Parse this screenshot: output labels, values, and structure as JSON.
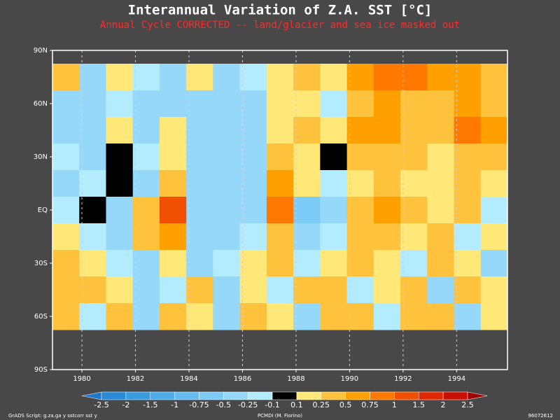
{
  "chart_data": {
    "type": "heatmap",
    "title": "Interannual Variation of Z.A. SST [°C]",
    "subtitle": "Annual Cycle CORRECTED -- land/glacier and sea ice masked out",
    "x": [
      1979.4,
      1980.4,
      1981.4,
      1982.4,
      1983.4,
      1984.4,
      1985.4,
      1986.4,
      1987.4,
      1988.4,
      1989.4,
      1990.4,
      1991.4,
      1992.4,
      1993.4,
      1994.4,
      1995.4
    ],
    "y": [
      75,
      60,
      45,
      30,
      15,
      0,
      -15,
      -30,
      -45,
      -60
    ],
    "z": [
      [
        0.3,
        -0.3,
        0.2,
        -0.2,
        -0.3,
        0.2,
        -0.3,
        -0.2,
        0.2,
        0.3,
        0.2,
        0.6,
        0.8,
        0.9,
        0.7,
        0.6,
        0.4
      ],
      [
        -0.3,
        -0.5,
        -0.2,
        -0.3,
        -0.4,
        -0.5,
        -0.3,
        -0.4,
        0.2,
        0.15,
        -0.2,
        0.4,
        0.5,
        0.3,
        0.4,
        0.6,
        0.3
      ],
      [
        -0.4,
        -0.3,
        0.2,
        -0.4,
        0.15,
        -0.3,
        -0.4,
        -0.3,
        0.2,
        0.3,
        0.15,
        0.5,
        0.7,
        0.4,
        0.3,
        0.8,
        0.5
      ],
      [
        -0.2,
        -0.3,
        -0.05,
        -0.2,
        0.2,
        -0.3,
        -0.4,
        -0.3,
        0.3,
        0.2,
        -0.05,
        0.3,
        0.4,
        0.3,
        0.2,
        0.4,
        0.3
      ],
      [
        -0.3,
        -0.2,
        0.0,
        -0.3,
        0.3,
        -0.4,
        -0.5,
        -0.4,
        0.5,
        0.2,
        -0.2,
        0.2,
        0.3,
        0.2,
        0.15,
        0.3,
        0.2
      ],
      [
        -0.2,
        0.0,
        -0.3,
        0.4,
        1.2,
        -0.3,
        -0.5,
        -0.4,
        0.8,
        -0.6,
        -0.4,
        0.3,
        0.5,
        0.4,
        0.2,
        0.3,
        -0.2
      ],
      [
        0.2,
        -0.2,
        -0.3,
        0.3,
        0.6,
        -0.3,
        -0.4,
        -0.2,
        0.4,
        -0.3,
        -0.2,
        0.3,
        0.4,
        0.2,
        0.3,
        -0.2,
        0.15
      ],
      [
        0.3,
        0.15,
        -0.2,
        -0.3,
        0.2,
        -0.3,
        -0.2,
        0.15,
        0.3,
        -0.2,
        0.2,
        0.3,
        0.2,
        -0.2,
        0.3,
        0.2,
        -0.3
      ],
      [
        0.4,
        0.3,
        0.2,
        -0.3,
        -0.2,
        0.3,
        -0.3,
        0.2,
        -0.2,
        0.3,
        0.3,
        -0.2,
        0.2,
        0.3,
        -0.3,
        0.4,
        0.2
      ],
      [
        0.3,
        -0.2,
        0.4,
        -0.3,
        0.3,
        0.2,
        -0.4,
        0.3,
        0.2,
        -0.3,
        0.3,
        0.4,
        -0.2,
        0.3,
        0.3,
        -0.3,
        0.2
      ]
    ],
    "xlim": [
      1978.9,
      1995.9
    ],
    "ylim": [
      -90,
      90
    ],
    "xticks": [
      1980,
      1982,
      1984,
      1986,
      1988,
      1990,
      1992,
      1994
    ],
    "yticks": [
      {
        "value": 90,
        "label": "90N"
      },
      {
        "value": 60,
        "label": "60N"
      },
      {
        "value": 30,
        "label": "30N"
      },
      {
        "value": 0,
        "label": "EQ"
      },
      {
        "value": -30,
        "label": "30S"
      },
      {
        "value": -60,
        "label": "60S"
      },
      {
        "value": -90,
        "label": "90S"
      }
    ],
    "xgrid": true,
    "colorbar": {
      "levels": [
        -2.5,
        -2,
        -1.5,
        -1,
        -0.75,
        -0.5,
        -0.25,
        -0.1,
        0.1,
        0.25,
        0.5,
        0.75,
        1,
        1.5,
        2,
        2.5
      ],
      "colors": [
        "#1e78c8",
        "#2a8ad6",
        "#3a9ce0",
        "#4eacea",
        "#64bcf0",
        "#7ccaf6",
        "#96d8fa",
        "#b4ecff",
        "#000000",
        "#ffe878",
        "#ffc23c",
        "#ffa000",
        "#ff7800",
        "#f05000",
        "#e02800",
        "#c81000",
        "#a00000"
      ]
    },
    "footer_left": "GrADS Script: g.za.ga y sstcorr sst y",
    "footer_center": "PCMDI (M. Fiorino)",
    "footer_right": "96072612"
  }
}
